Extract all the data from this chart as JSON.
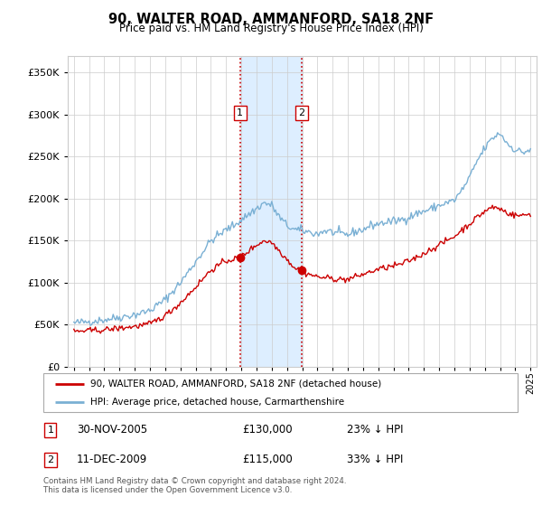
{
  "title": "90, WALTER ROAD, AMMANFORD, SA18 2NF",
  "subtitle": "Price paid vs. HM Land Registry's House Price Index (HPI)",
  "footer": "Contains HM Land Registry data © Crown copyright and database right 2024.\nThis data is licensed under the Open Government Licence v3.0.",
  "legend_line1": "90, WALTER ROAD, AMMANFORD, SA18 2NF (detached house)",
  "legend_line2": "HPI: Average price, detached house, Carmarthenshire",
  "sale1_date": "30-NOV-2005",
  "sale1_price": "£130,000",
  "sale1_hpi": "23% ↓ HPI",
  "sale2_date": "11-DEC-2009",
  "sale2_price": "£115,000",
  "sale2_hpi": "33% ↓ HPI",
  "sale1_x": 2005.92,
  "sale1_y": 130000,
  "sale2_x": 2009.95,
  "sale2_y": 115000,
  "vline1_x": 2005.92,
  "vline2_x": 2009.95,
  "shade_color": "#ddeeff",
  "vline_color": "#cc0000",
  "hpi_color": "#7ab0d4",
  "price_color": "#cc0000",
  "background_color": "#ffffff",
  "grid_color": "#cccccc",
  "ylim": [
    0,
    370000
  ],
  "xlim": [
    1994.6,
    2025.4
  ],
  "yticks": [
    0,
    50000,
    100000,
    150000,
    200000,
    250000,
    300000,
    350000
  ]
}
